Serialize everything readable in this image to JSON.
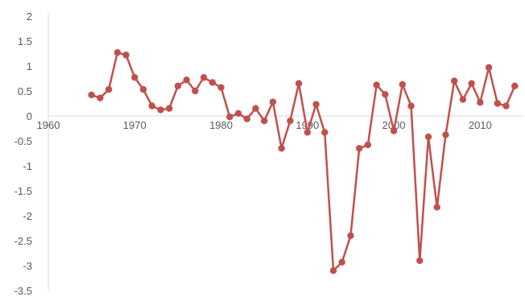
{
  "chart_data": {
    "type": "line",
    "title": "",
    "xlabel": "",
    "ylabel": "",
    "xlim": [
      1960,
      2015
    ],
    "ylim": [
      -3.5,
      2
    ],
    "xticks": [
      1960,
      1970,
      1980,
      1990,
      2000,
      2010
    ],
    "xtick_labels": [
      "1960",
      "1970",
      "1980",
      "1990",
      "2000",
      "2010"
    ],
    "yticks": [
      2,
      1.5,
      1,
      0.5,
      0,
      -0.5,
      -1,
      -1.5,
      -2,
      -2.5,
      -3,
      -3.5
    ],
    "ytick_labels": [
      "2",
      "1.5",
      "1",
      "0.5",
      "0",
      "-0.5",
      "-1",
      "-1.5",
      "-2",
      "-2.5",
      "-3",
      "-3.5"
    ],
    "grid": false,
    "legend": "none",
    "series": [
      {
        "color": "#c0504d",
        "x": [
          1965,
          1966,
          1967,
          1968,
          1969,
          1970,
          1971,
          1972,
          1973,
          1974,
          1975,
          1976,
          1977,
          1978,
          1979,
          1980,
          1981,
          1982,
          1983,
          1984,
          1985,
          1986,
          1987,
          1988,
          1989,
          1990,
          1991,
          1992,
          1993,
          1994,
          1995,
          1996,
          1997,
          1998,
          1999,
          2000,
          2001,
          2002,
          2003,
          2004,
          2005,
          2006,
          2007,
          2008,
          2009,
          2010,
          2011,
          2012,
          2013,
          2014
        ],
        "y": [
          0.42,
          0.36,
          0.53,
          1.27,
          1.22,
          0.77,
          0.53,
          0.2,
          0.12,
          0.15,
          0.6,
          0.72,
          0.5,
          0.77,
          0.67,
          0.57,
          -0.02,
          0.05,
          -0.06,
          0.15,
          -0.1,
          0.28,
          -0.65,
          -0.1,
          0.65,
          -0.33,
          0.23,
          -0.33,
          -3.1,
          -2.93,
          -2.4,
          -0.65,
          -0.58,
          0.62,
          0.43,
          -0.3,
          0.63,
          0.2,
          -2.9,
          -0.42,
          -1.83,
          -0.38,
          0.7,
          0.33,
          0.65,
          0.27,
          0.97,
          0.25,
          0.2,
          0.6
        ]
      }
    ]
  }
}
